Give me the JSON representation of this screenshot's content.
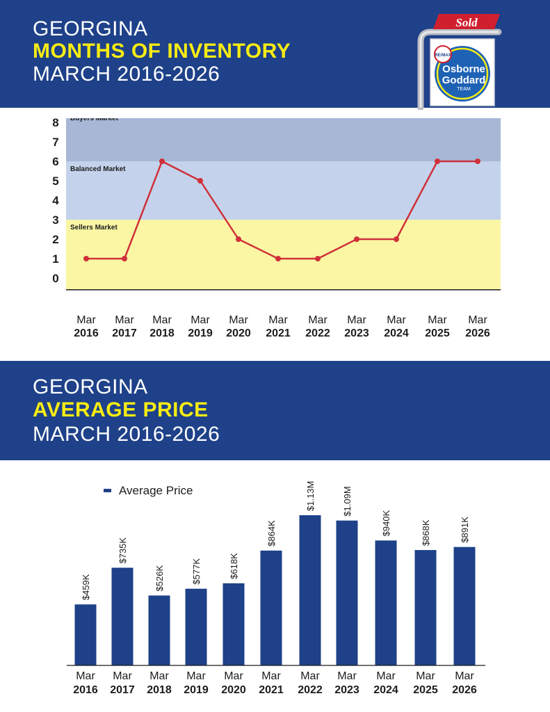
{
  "header1": {
    "line1": "GEORGINA",
    "line2": "MONTHS OF INVENTORY",
    "line3": "MARCH 2016-2026"
  },
  "header2": {
    "line1": "GEORGINA",
    "line2": "AVERAGE PRICE",
    "line3": "MARCH 2016-2026"
  },
  "logo": {
    "sign_text": "Sold",
    "badge": "RE/MAX",
    "name1": "Osborne",
    "name2": "Goddard",
    "name3": "TEAM"
  },
  "colors": {
    "banner": "#1e4189",
    "highlight": "#f7ec13",
    "line": "#d0303a",
    "bar": "#1e4189",
    "buyers_band": "#a7b7d6",
    "balanced_band": "#c4d3eb",
    "sellers_band": "#fbf6a4"
  },
  "chart_data": [
    {
      "type": "line",
      "categories": [
        [
          "Mar",
          "2016"
        ],
        [
          "Mar",
          "2017"
        ],
        [
          "Mar",
          "2018"
        ],
        [
          "Mar",
          "2019"
        ],
        [
          "Mar",
          "2020"
        ],
        [
          "Mar",
          "2021"
        ],
        [
          "Mar",
          "2022"
        ],
        [
          "Mar",
          "2023"
        ],
        [
          "Mar",
          "2024"
        ],
        [
          "Mar",
          "2025"
        ],
        [
          "Mar",
          "2026"
        ]
      ],
      "values": [
        1,
        1,
        6,
        5,
        2,
        1,
        1,
        2,
        2,
        6,
        6
      ],
      "ylim": [
        0,
        8
      ],
      "yticks": [
        "0",
        "1",
        "2",
        "3",
        "4",
        "5",
        "6",
        "7",
        "8"
      ],
      "bands": [
        {
          "label": "Buyers Market",
          "from": 6,
          "to": 8.6
        },
        {
          "label": "Balanced Market",
          "from": 3,
          "to": 6
        },
        {
          "label": "Sellers Market",
          "from": -0.6,
          "to": 3
        }
      ]
    },
    {
      "type": "bar",
      "legend": "Average Price",
      "categories": [
        [
          "Mar",
          "2016"
        ],
        [
          "Mar",
          "2017"
        ],
        [
          "Mar",
          "2018"
        ],
        [
          "Mar",
          "2019"
        ],
        [
          "Mar",
          "2020"
        ],
        [
          "Mar",
          "2021"
        ],
        [
          "Mar",
          "2022"
        ],
        [
          "Mar",
          "2023"
        ],
        [
          "Mar",
          "2024"
        ],
        [
          "Mar",
          "2025"
        ],
        [
          "Mar",
          "2026"
        ]
      ],
      "values": [
        459000,
        735000,
        526000,
        577000,
        618000,
        864000,
        1130000,
        1090000,
        940000,
        868000,
        891000
      ],
      "labels": [
        "$459K",
        "$735K",
        "$526K",
        "$577K",
        "$618K",
        "$864K",
        "$1.13M",
        "$1.09M",
        "$940K",
        "$868K",
        "$891K"
      ]
    }
  ]
}
